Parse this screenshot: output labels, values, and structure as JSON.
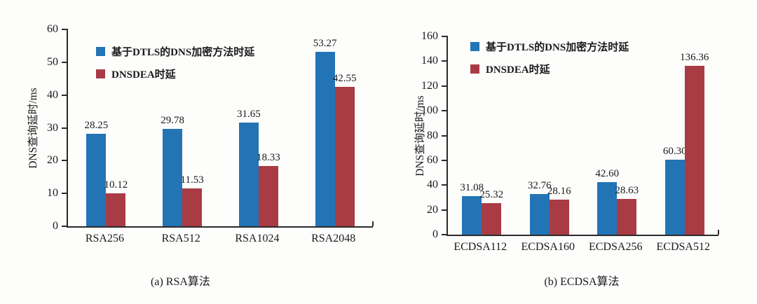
{
  "figure": {
    "background": "#fdfdfc",
    "axis_color": "#2b2b2b",
    "text_color": "#1a1a1a"
  },
  "chart_data": [
    {
      "type": "bar",
      "title": "(a) RSA算法",
      "ylabel": "DNS查询延时/ms",
      "xlabel": "",
      "ylim": [
        0,
        60
      ],
      "yticks": [
        0,
        10,
        20,
        30,
        40,
        50,
        60
      ],
      "grid": false,
      "legend_position": "top-left",
      "categories": [
        "RSA256",
        "RSA512",
        "RSA1024",
        "RSA2048"
      ],
      "series": [
        {
          "name": "基于DTLS的DNS加密方法时延",
          "color": "#2374B5",
          "values": [
            28.25,
            29.78,
            31.65,
            53.27
          ],
          "labels": [
            "28.25",
            "29.78",
            "31.65",
            "53.27"
          ]
        },
        {
          "name": "DNSDEA时延",
          "color": "#A93B45",
          "values": [
            10.12,
            11.53,
            18.33,
            42.55
          ],
          "labels": [
            "10.12",
            "11.53",
            "18.33",
            "42.55"
          ]
        }
      ]
    },
    {
      "type": "bar",
      "title": "(b) ECDSA算法",
      "ylabel": "DNS查询延时/ms",
      "xlabel": "",
      "ylim": [
        0,
        160
      ],
      "yticks": [
        0,
        20,
        40,
        60,
        80,
        100,
        120,
        140,
        160
      ],
      "grid": false,
      "legend_position": "top-left",
      "categories": [
        "ECDSA112",
        "ECDSA160",
        "ECDSA256",
        "ECDSA512"
      ],
      "series": [
        {
          "name": "基于DTLS的DNS加密方法时延",
          "color": "#2374B5",
          "values": [
            31.08,
            32.76,
            42.6,
            60.3
          ],
          "labels": [
            "31.08",
            "32.76",
            "42.60",
            "60.30"
          ]
        },
        {
          "name": "DNSDEA时延",
          "color": "#A93B45",
          "values": [
            25.32,
            28.16,
            28.63,
            136.36
          ],
          "labels": [
            "25.32",
            "28.16",
            "28.63",
            "136.36"
          ]
        }
      ]
    }
  ]
}
